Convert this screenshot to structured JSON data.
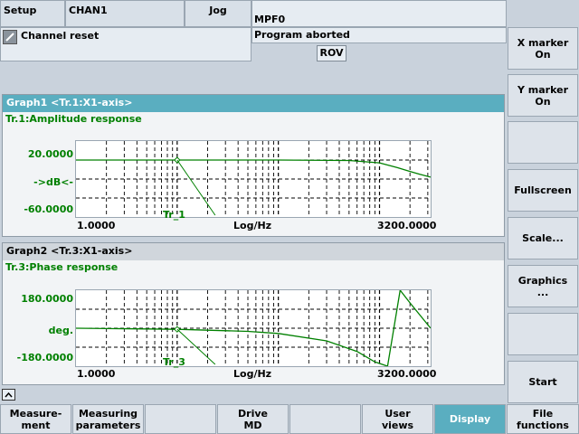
{
  "header": {
    "area": "Setup",
    "channel": "CHAN1",
    "mode": "Jog",
    "program": "MPF0",
    "channel_status": "Channel reset",
    "program_status": "Program aborted",
    "rov": "ROV"
  },
  "graph1": {
    "title": "Graph1 <Tr.1:X1-axis>",
    "subtitle": "Tr.1:Amplitude response",
    "y_ticks": [
      "20.0000",
      "->dB<-",
      "-60.0000"
    ],
    "x_min": "1.0000",
    "x_label": "Log/Hz",
    "x_max": "3200.0000",
    "trace_label": "Tr_1"
  },
  "graph2": {
    "title": "Graph2 <Tr.3:X1-axis>",
    "subtitle": "Tr.3:Phase response",
    "y_ticks": [
      "180.0000",
      "deg.",
      "-180.0000"
    ],
    "x_min": "1.0000",
    "x_label": "Log/Hz",
    "x_max": "3200.0000",
    "trace_label": "Tr_3"
  },
  "vertical_softkeys": [
    "X marker\nOn",
    "Y marker\nOn",
    "",
    "Fullscreen",
    "Scale...",
    "Graphics\n...",
    "",
    "Start"
  ],
  "horizontal_softkeys": [
    "Measure-\nment",
    "Measuring\nparameters",
    "",
    "Drive\nMD",
    "",
    "User\nviews",
    "Display",
    "File\nfunctions"
  ],
  "active_softkey": "Display",
  "chart_data": [
    {
      "type": "line",
      "title": "Tr.1:Amplitude response",
      "xlabel": "Log/Hz",
      "ylabel": "->dB<-",
      "x_scale": "log",
      "xlim": [
        1,
        3200
      ],
      "ylim": [
        -60,
        20
      ],
      "x": [
        1,
        10,
        100,
        500,
        1000,
        1500,
        2000,
        2500,
        3200
      ],
      "series": [
        {
          "values": [
            0,
            0,
            0,
            -0.5,
            -3,
            -8,
            -12,
            -15,
            -18
          ]
        }
      ],
      "grid": true
    },
    {
      "type": "line",
      "title": "Tr.3:Phase response",
      "xlabel": "Log/Hz",
      "ylabel": "deg.",
      "x_scale": "log",
      "xlim": [
        1,
        3200
      ],
      "ylim": [
        -180,
        180
      ],
      "x": [
        1,
        10,
        50,
        100,
        300,
        600,
        900,
        1200,
        1600,
        2000,
        3200
      ],
      "series": [
        {
          "values": [
            0,
            -5,
            -15,
            -25,
            -60,
            -110,
            -160,
            -180,
            180,
            120,
            0
          ]
        }
      ],
      "grid": true
    }
  ],
  "colors": {
    "accent": "#5aaec0",
    "trace": "#008000"
  }
}
